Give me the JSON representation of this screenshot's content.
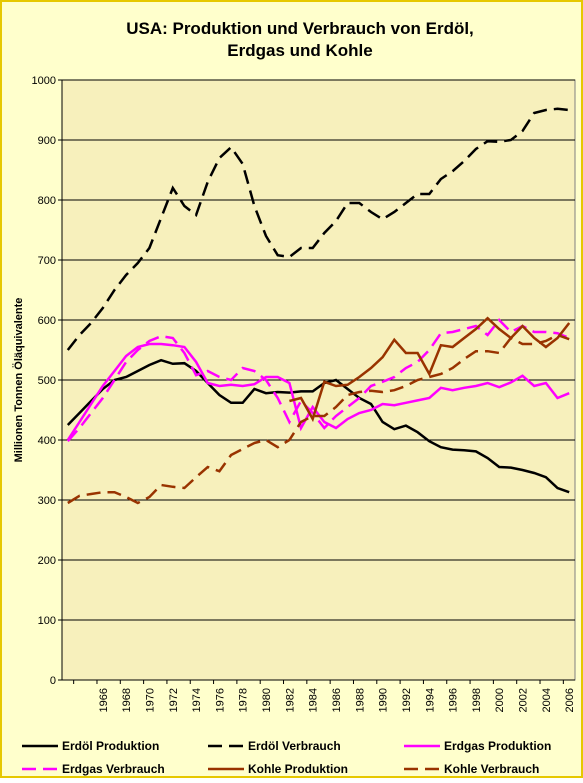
{
  "chart_data": {
    "type": "line",
    "title": [
      "USA: Produktion und  Verbrauch von Erdöl,",
      "Erdgas und Kohle"
    ],
    "y_label": "Millionen Tonnen Öläquivalente",
    "categories": [
      null,
      null,
      null,
      "1966",
      null,
      "1968",
      null,
      "1970",
      null,
      "1972",
      null,
      "1974",
      null,
      "1976",
      null,
      "1978",
      null,
      "1980",
      null,
      "1982",
      null,
      "1984",
      null,
      "1986",
      null,
      "1988",
      null,
      "1990",
      null,
      "1992",
      null,
      "1994",
      null,
      "1996",
      null,
      "1998",
      null,
      "2000",
      null,
      "2002",
      null,
      "2004",
      null,
      "2006"
    ],
    "ylim": [
      0,
      1000
    ],
    "yticks": [
      0,
      100,
      200,
      300,
      400,
      500,
      600,
      700,
      800,
      900,
      1000
    ],
    "grid": true,
    "legend": "bottom",
    "series": [
      {
        "name": "Erdöl Produktion",
        "color": "#000000",
        "style": "solid",
        "values": [
          425,
          445,
          465,
          485,
          500,
          505,
          515,
          525,
          533,
          527,
          528,
          515,
          495,
          475,
          462,
          462,
          485,
          478,
          480,
          479,
          481,
          481,
          495,
          500,
          485,
          470,
          460,
          430,
          418,
          424,
          413,
          398,
          388,
          384,
          383,
          381,
          370,
          355,
          354,
          350,
          345,
          338,
          320,
          313
        ]
      },
      {
        "name": "Erdöl Verbrauch",
        "color": "#000000",
        "style": "dashed",
        "values": [
          550,
          575,
          595,
          620,
          650,
          675,
          695,
          720,
          770,
          820,
          790,
          775,
          830,
          870,
          888,
          860,
          790,
          740,
          708,
          705,
          720,
          720,
          745,
          765,
          795,
          795,
          780,
          768,
          780,
          795,
          810,
          810,
          835,
          848,
          865,
          885,
          898,
          897,
          900,
          915,
          945,
          950,
          952,
          950
        ]
      },
      {
        "name": "Erdgas Produktion",
        "color": "#ff00ff",
        "style": "solid",
        "values": [
          400,
          430,
          460,
          490,
          515,
          540,
          555,
          560,
          560,
          558,
          555,
          530,
          495,
          490,
          492,
          490,
          493,
          505,
          505,
          495,
          420,
          455,
          430,
          420,
          435,
          445,
          450,
          460,
          458,
          462,
          466,
          470,
          487,
          483,
          487,
          490,
          495,
          488,
          496,
          507,
          490,
          495,
          470,
          478
        ]
      },
      {
        "name": "Erdgas Verbrauch",
        "color": "#ff00ff",
        "style": "dashed",
        "values": [
          398,
          420,
          445,
          470,
          500,
          530,
          550,
          565,
          573,
          570,
          545,
          508,
          515,
          505,
          500,
          520,
          515,
          500,
          470,
          430,
          465,
          445,
          420,
          440,
          455,
          470,
          490,
          497,
          505,
          520,
          530,
          550,
          578,
          580,
          585,
          590,
          575,
          600,
          580,
          590,
          580,
          580,
          578,
          570
        ]
      },
      {
        "name": "Kohle Produktion",
        "color": "#993300",
        "style": "solid",
        "values": [
          null,
          null,
          null,
          null,
          null,
          null,
          null,
          null,
          null,
          null,
          null,
          null,
          null,
          null,
          null,
          null,
          null,
          null,
          null,
          465,
          470,
          435,
          497,
          490,
          492,
          505,
          520,
          538,
          567,
          545,
          545,
          510,
          558,
          555,
          570,
          585,
          603,
          585,
          570,
          590,
          570,
          555,
          570,
          595
        ]
      },
      {
        "name": "Kohle Verbrauch",
        "color": "#993300",
        "style": "dashed",
        "values": [
          295,
          307,
          310,
          313,
          313,
          305,
          295,
          305,
          325,
          322,
          320,
          338,
          355,
          348,
          375,
          385,
          395,
          400,
          388,
          400,
          430,
          440,
          440,
          455,
          475,
          480,
          482,
          480,
          483,
          490,
          500,
          505,
          510,
          520,
          535,
          548,
          548,
          545,
          570,
          560,
          560,
          565,
          575,
          568
        ]
      }
    ]
  }
}
